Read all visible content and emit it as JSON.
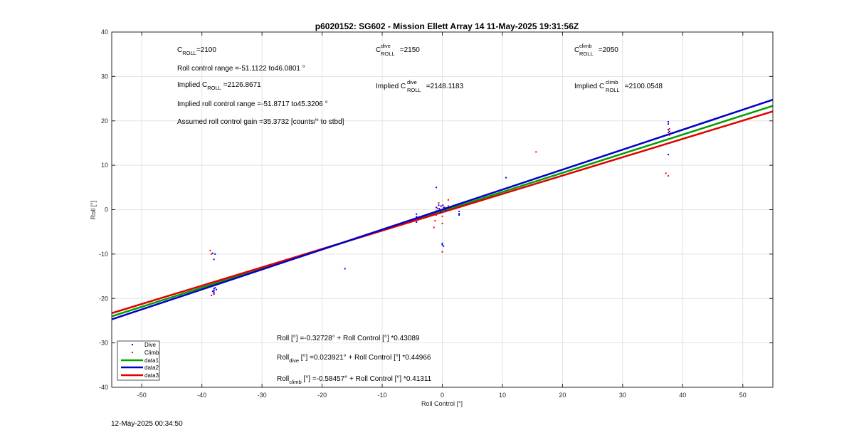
{
  "chart_data": {
    "type": "scatter",
    "title": "p6020152: SG602 - Mission Ellett Array 14 11-May-2025 19:31:56Z",
    "xlabel": "Roll Control [°]",
    "ylabel": "Roll [°]",
    "xlim": [
      -55,
      55
    ],
    "ylim": [
      -40,
      40
    ],
    "xticks": [
      -50,
      -40,
      -30,
      -20,
      -10,
      0,
      10,
      20,
      30,
      40,
      50
    ],
    "yticks": [
      -40,
      -30,
      -20,
      -10,
      0,
      10,
      20,
      30,
      40
    ],
    "grid": true,
    "legend_placement": "bottom-left",
    "series": [
      {
        "name": "Dive",
        "kind": "points",
        "color": "#0000ff",
        "points": [
          [
            -38,
            -17.8
          ],
          [
            -38,
            -18.2
          ],
          [
            -38,
            -18.6
          ],
          [
            -37.8,
            -17.6
          ],
          [
            -38.2,
            -18.4
          ],
          [
            -38,
            -19.0
          ],
          [
            -37.6,
            -18.0
          ],
          [
            -38,
            -11.2
          ],
          [
            -38.2,
            -9.8
          ],
          [
            -37.8,
            -10.0
          ],
          [
            -16.2,
            -13.3
          ],
          [
            -4.3,
            -1.0
          ],
          [
            -4.3,
            -2.0
          ],
          [
            -4.3,
            -2.8
          ],
          [
            -4.3,
            -1.6
          ],
          [
            -1.0,
            5.0
          ],
          [
            -1.0,
            0.5
          ],
          [
            -1.0,
            -0.3
          ],
          [
            -0.6,
            1.0
          ],
          [
            -0.5,
            0.2
          ],
          [
            -0.3,
            -0.6
          ],
          [
            -0.2,
            0.8
          ],
          [
            0.0,
            -7.6
          ],
          [
            0.0,
            -7.9
          ],
          [
            0.2,
            -8.2
          ],
          [
            0.1,
            1.0
          ],
          [
            0.4,
            0.5
          ],
          [
            0.6,
            -0.2
          ],
          [
            2.8,
            -0.4
          ],
          [
            2.8,
            -0.9
          ],
          [
            2.8,
            -1.2
          ],
          [
            10.6,
            7.2
          ],
          [
            37.6,
            19.8
          ],
          [
            37.6,
            19.3
          ],
          [
            37.6,
            18.0
          ],
          [
            37.8,
            17.6
          ],
          [
            37.6,
            12.4
          ]
        ]
      },
      {
        "name": "Climb",
        "kind": "points",
        "color": "#ff0000",
        "points": [
          [
            -38.6,
            -9.2
          ],
          [
            -38.4,
            -10.0
          ],
          [
            -38.4,
            -19.3
          ],
          [
            -38.0,
            -18.8
          ],
          [
            -1.4,
            -4.0
          ],
          [
            -1.2,
            -2.5
          ],
          [
            -1.0,
            -1.2
          ],
          [
            -0.8,
            0.3
          ],
          [
            -0.6,
            1.5
          ],
          [
            0.0,
            -1.5
          ],
          [
            0.0,
            -3.1
          ],
          [
            0.0,
            -9.5
          ],
          [
            0.2,
            0.5
          ],
          [
            1.0,
            2.2
          ],
          [
            1.0,
            0.8
          ],
          [
            15.6,
            13.0
          ],
          [
            37.2,
            8.2
          ],
          [
            37.6,
            7.6
          ],
          [
            37.8,
            18.2
          ],
          [
            37.6,
            17.4
          ],
          [
            37.8,
            16.8
          ]
        ]
      },
      {
        "name": "data1",
        "kind": "line",
        "color": "#00a000",
        "intercept": -0.32728,
        "slope": 0.43089
      },
      {
        "name": "data2",
        "kind": "line",
        "color": "#0000c8",
        "intercept": 0.023921,
        "slope": 0.44966
      },
      {
        "name": "data3",
        "kind": "line",
        "color": "#e00000",
        "intercept": -0.58457,
        "slope": 0.41311
      }
    ],
    "annotations": {
      "c_roll": {
        "base": "C",
        "sub": "ROLL",
        "value": "=2100"
      },
      "c_roll_dive": {
        "base": "C",
        "sup": "dive",
        "sub": "ROLL",
        "value": " =2150"
      },
      "c_roll_climb": {
        "base": "C",
        "sup": "climb",
        "sub": "ROLL",
        "value": " =2050"
      },
      "roll_control_range": "Roll control range =-51.1122 to46.0801 °",
      "implied_c_roll": {
        "prefix": "Implied C",
        "sub": "ROLL",
        "value": " =2126.8671"
      },
      "implied_c_roll_dive": {
        "prefix": "Implied C",
        "sup": "dive",
        "sub": "ROLL",
        "value": " =2148.1183"
      },
      "implied_c_roll_climb": {
        "prefix": "Implied C",
        "sup": "climb",
        "sub": "ROLL",
        "value": " =2100.0548"
      },
      "implied_roll_control_range": "Implied roll control range =-51.8717 to45.3206 °",
      "gain": "Assumed roll control gain =35.3732 [counts/° to stbd]",
      "fit_all": "Roll [°] =-0.32728° + Roll Control [°] *0.43089",
      "fit_dive": {
        "base": "Roll",
        "sub": "dive",
        "rest": " [°] =0.023921° + Roll Control [°] *0.44966"
      },
      "fit_climb": {
        "base": "Roll",
        "sub": "climb",
        "rest": " [°] =-0.58457° + Roll Control [°] *0.41311"
      }
    }
  },
  "timestamp": "12-May-2025 00:34:50"
}
